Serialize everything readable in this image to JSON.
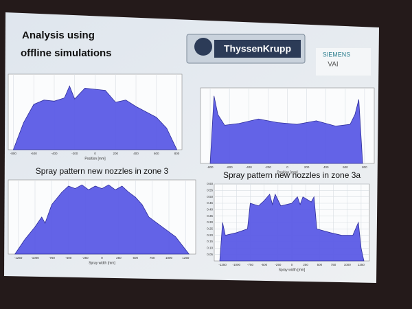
{
  "header": {
    "title_lines": [
      "Analysis using",
      "offline simulations"
    ],
    "logo_text": "ThyssenKrupp",
    "partner_name": "SIEMENS",
    "partner_sub": "VAI"
  },
  "chart_data": [
    {
      "type": "area",
      "x_label": "Position [mm]",
      "color": "#5b5be6",
      "x": [
        -800,
        -700,
        -600,
        -500,
        -400,
        -300,
        -250,
        -200,
        -150,
        -100,
        0,
        100,
        200,
        300,
        400,
        500,
        600,
        700,
        800
      ],
      "values": [
        0,
        2.5,
        4.2,
        4.6,
        4.5,
        4.8,
        5.9,
        4.7,
        5.2,
        5.7,
        5.6,
        5.5,
        4.4,
        4.6,
        4.0,
        3.5,
        3.0,
        2.0,
        0
      ],
      "xlim": [
        -850,
        850
      ],
      "ylim": [
        0,
        7
      ],
      "xticks": [
        -800,
        -600,
        -400,
        -200,
        0,
        200,
        400,
        600,
        800
      ]
    },
    {
      "type": "area",
      "x_label": "Position [mm]",
      "color": "#5b5be6",
      "x": [
        -800,
        -760,
        -720,
        -650,
        -500,
        -300,
        -100,
        100,
        300,
        500,
        650,
        700,
        740,
        780
      ],
      "values": [
        0,
        7.6,
        5.5,
        4.3,
        4.5,
        5.0,
        4.6,
        4.4,
        4.8,
        4.2,
        4.4,
        5.5,
        7.2,
        0
      ],
      "xlim": [
        -900,
        900
      ],
      "ylim": [
        0,
        8.5
      ],
      "xticks": [
        -800,
        -600,
        -400,
        -200,
        0,
        200,
        400,
        600,
        800
      ]
    },
    {
      "type": "area",
      "title": "Spray pattern new nozzles in zone 3",
      "x_label": "Spray width [mm]",
      "color": "#5b5be6",
      "x": [
        -1300,
        -1150,
        -1000,
        -900,
        -850,
        -750,
        -600,
        -500,
        -400,
        -300,
        -200,
        -100,
        0,
        100,
        200,
        300,
        400,
        500,
        600,
        700,
        800,
        900,
        1100,
        1300
      ],
      "values": [
        0,
        0.12,
        0.22,
        0.3,
        0.25,
        0.4,
        0.5,
        0.55,
        0.53,
        0.56,
        0.52,
        0.55,
        0.53,
        0.56,
        0.52,
        0.55,
        0.5,
        0.46,
        0.4,
        0.3,
        0.26,
        0.22,
        0.14,
        0
      ],
      "xlim": [
        -1400,
        1400
      ],
      "ylim": [
        0,
        0.6
      ],
      "xticks": [
        -1250,
        -1000,
        -750,
        -500,
        -250,
        0,
        250,
        500,
        750,
        1000,
        1250
      ]
    },
    {
      "type": "area",
      "title": "Spray pattern new nozzles in zone 3a",
      "x_label": "Spray width [mm]",
      "color": "#5b5be6",
      "x": [
        -1300,
        -1250,
        -1200,
        -1000,
        -800,
        -750,
        -600,
        -500,
        -400,
        -350,
        -300,
        -200,
        0,
        100,
        150,
        200,
        350,
        400,
        450,
        700,
        900,
        1100,
        1200,
        1250,
        1300
      ],
      "values": [
        0,
        0.3,
        0.2,
        0.22,
        0.25,
        0.45,
        0.43,
        0.47,
        0.52,
        0.44,
        0.52,
        0.43,
        0.45,
        0.5,
        0.44,
        0.5,
        0.46,
        0.5,
        0.25,
        0.22,
        0.2,
        0.2,
        0.3,
        0.1,
        0
      ],
      "xlim": [
        -1400,
        1400
      ],
      "ylim": [
        0,
        0.6
      ],
      "xticks": [
        -1250,
        -1000,
        -750,
        -500,
        -250,
        0,
        250,
        500,
        750,
        1000,
        1250
      ],
      "yticks": [
        0.05,
        {
          "value": 0.1,
          "label": "0.10"
        },
        0.15,
        {
          "value": 0.2,
          "label": "0.20"
        },
        0.25,
        {
          "value": 0.3,
          "label": "0.30"
        },
        0.35,
        {
          "value": 0.4,
          "label": "0.40"
        },
        0.45,
        {
          "value": 0.5,
          "label": "0.50"
        },
        0.55,
        {
          "value": 0.6,
          "label": "0.60"
        }
      ]
    }
  ]
}
